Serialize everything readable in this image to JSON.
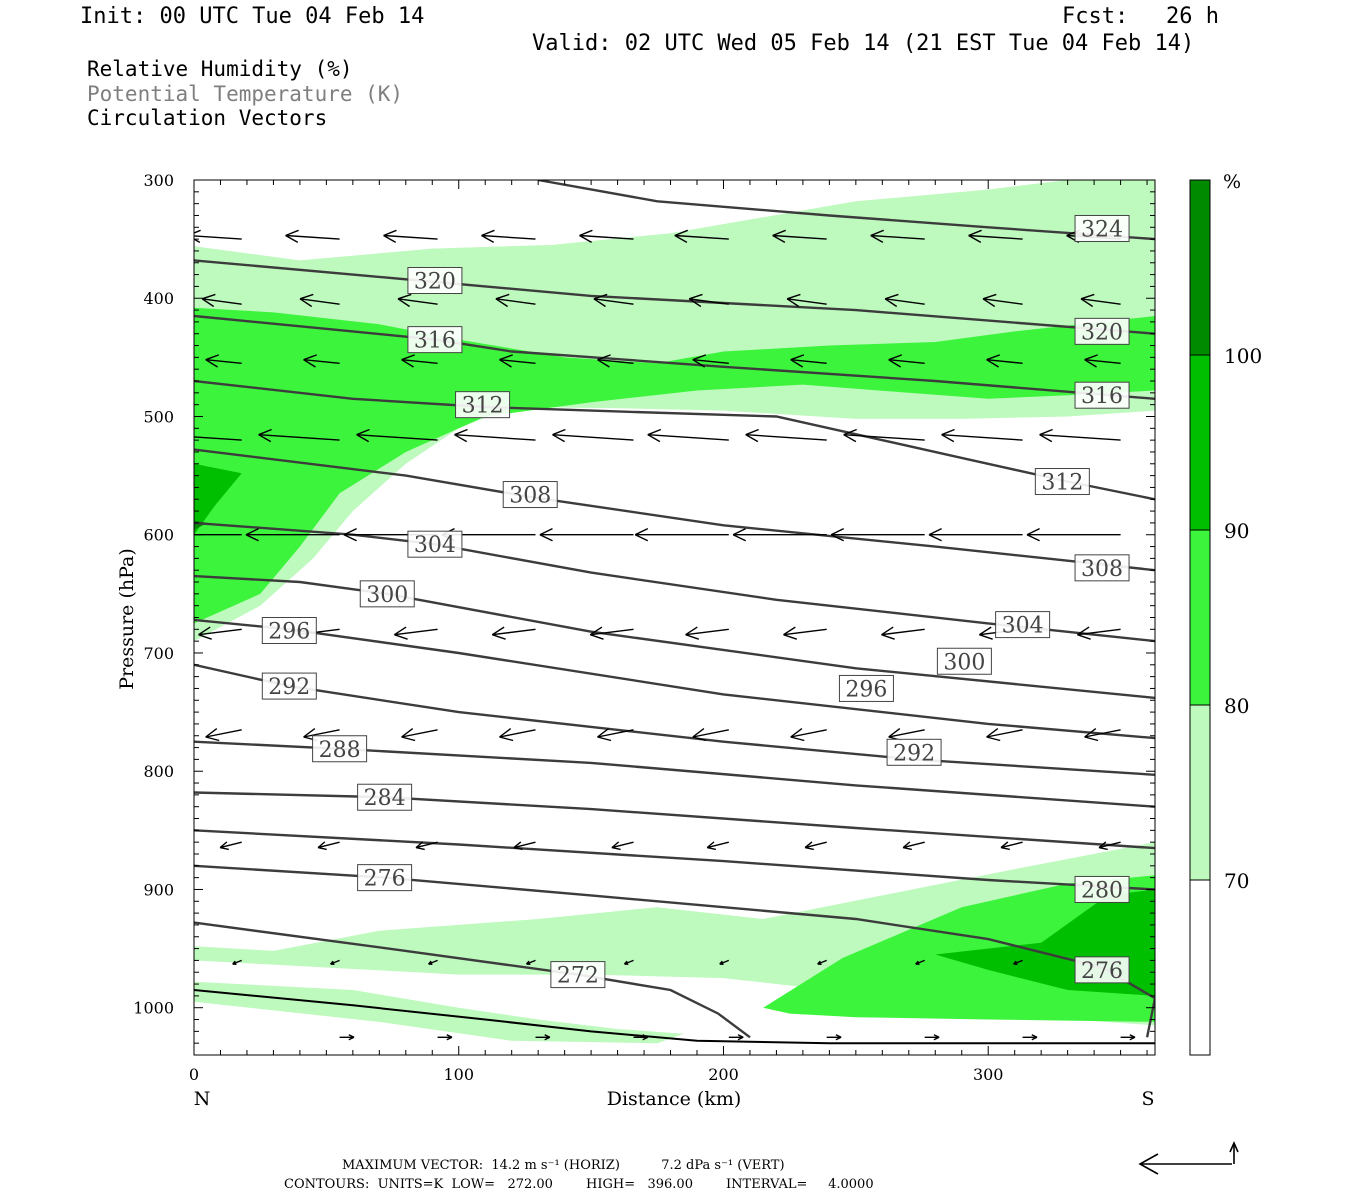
{
  "header": {
    "init": "Init: 00 UTC Tue 04 Feb 14",
    "fcst_label": "Fcst:",
    "fcst_value": "26 h",
    "valid": "Valid: 02 UTC Wed 05 Feb 14 (21 EST Tue 04 Feb 14)"
  },
  "legend": {
    "rh": "Relative Humidity (%)",
    "theta": "Potential Temperature (K)",
    "vectors": "Circulation Vectors"
  },
  "colors": {
    "rh70": "#bef9be",
    "rh80": "#3cf43c",
    "rh90": "#00bf00",
    "rh100": "#008a00",
    "contour": "#3c3c3c",
    "arrow": "#000000"
  },
  "chart_data": {
    "type": "cross-section",
    "xlabel": "Distance (km)",
    "ylabel": "Pressure (hPa)",
    "xlim": [
      0,
      363
    ],
    "ylim": [
      1040,
      300
    ],
    "x_ticks": [
      0,
      100,
      200,
      300
    ],
    "y_ticks": [
      300,
      400,
      500,
      600,
      700,
      800,
      900,
      1000
    ],
    "x_end_labels": {
      "left": "N",
      "right": "S"
    },
    "colorbar": {
      "unit": "%",
      "levels": [
        70,
        80,
        90,
        100
      ],
      "level_colors": [
        "#bef9be",
        "#3cf43c",
        "#00bf00",
        "#008a00"
      ]
    },
    "humidity_regions": [
      {
        "level": 70,
        "points": [
          [
            0,
            948
          ],
          [
            30,
            952
          ],
          [
            70,
            935
          ],
          [
            130,
            925
          ],
          [
            175,
            915
          ],
          [
            215,
            925
          ],
          [
            260,
            905
          ],
          [
            305,
            885
          ],
          [
            363,
            860
          ],
          [
            363,
            1015
          ],
          [
            300,
            1005
          ],
          [
            240,
            985
          ],
          [
            200,
            975
          ],
          [
            150,
            972
          ],
          [
            100,
            972
          ],
          [
            50,
            966
          ],
          [
            0,
            960
          ]
        ]
      },
      {
        "level": 70,
        "points": [
          [
            0,
            978
          ],
          [
            60,
            985
          ],
          [
            100,
            1000
          ],
          [
            130,
            1010
          ],
          [
            160,
            1018
          ],
          [
            185,
            1022
          ],
          [
            175,
            1030
          ],
          [
            120,
            1028
          ],
          [
            70,
            1012
          ],
          [
            0,
            995
          ]
        ]
      },
      {
        "level": 80,
        "points": [
          [
            215,
            1000
          ],
          [
            245,
            958
          ],
          [
            290,
            915
          ],
          [
            330,
            895
          ],
          [
            363,
            888
          ],
          [
            363,
            1012
          ],
          [
            300,
            1010
          ],
          [
            250,
            1008
          ],
          [
            225,
            1005
          ]
        ]
      },
      {
        "level": 90,
        "points": [
          [
            280,
            955
          ],
          [
            320,
            945
          ],
          [
            345,
            905
          ],
          [
            363,
            900
          ],
          [
            363,
            990
          ],
          [
            330,
            985
          ],
          [
            300,
            968
          ]
        ]
      },
      {
        "level": 70,
        "points": [
          [
            0,
            356
          ],
          [
            40,
            368
          ],
          [
            90,
            358
          ],
          [
            135,
            355
          ],
          [
            180,
            345
          ],
          [
            250,
            318
          ],
          [
            300,
            308
          ],
          [
            330,
            300
          ],
          [
            363,
            300
          ],
          [
            363,
            495
          ],
          [
            330,
            500
          ],
          [
            290,
            502
          ],
          [
            250,
            502
          ],
          [
            200,
            495
          ],
          [
            160,
            493
          ],
          [
            120,
            492
          ],
          [
            100,
            510
          ],
          [
            80,
            540
          ],
          [
            60,
            580
          ],
          [
            45,
            620
          ],
          [
            25,
            660
          ],
          [
            0,
            690
          ]
        ]
      },
      {
        "level": 80,
        "points": [
          [
            0,
            408
          ],
          [
            30,
            412
          ],
          [
            70,
            422
          ],
          [
            100,
            435
          ],
          [
            140,
            450
          ],
          [
            175,
            455
          ],
          [
            200,
            445
          ],
          [
            240,
            440
          ],
          [
            280,
            437
          ],
          [
            310,
            428
          ],
          [
            363,
            415
          ],
          [
            363,
            478
          ],
          [
            330,
            482
          ],
          [
            300,
            485
          ],
          [
            270,
            480
          ],
          [
            230,
            473
          ],
          [
            190,
            478
          ],
          [
            150,
            488
          ],
          [
            110,
            500
          ],
          [
            80,
            530
          ],
          [
            55,
            565
          ],
          [
            40,
            610
          ],
          [
            25,
            650
          ],
          [
            0,
            675
          ]
        ]
      },
      {
        "level": 90,
        "points": [
          [
            0,
            540
          ],
          [
            18,
            548
          ],
          [
            8,
            575
          ],
          [
            0,
            600
          ]
        ]
      },
      {
        "level": 100,
        "points": [
          [
            0,
            588
          ],
          [
            5,
            590
          ],
          [
            0,
            596
          ]
        ]
      }
    ],
    "theta_contours": [
      {
        "value": 324,
        "points": [
          [
            130,
            300
          ],
          [
            175,
            318
          ],
          [
            240,
            330
          ],
          [
            300,
            340
          ],
          [
            363,
            350
          ]
        ],
        "labels": [
          [
            343,
            341
          ]
        ]
      },
      {
        "value": 320,
        "points": [
          [
            0,
            368
          ],
          [
            85,
            385
          ],
          [
            150,
            398
          ],
          [
            250,
            410
          ],
          [
            363,
            430
          ]
        ],
        "labels": [
          [
            91,
            385
          ],
          [
            343,
            428
          ]
        ]
      },
      {
        "value": 316,
        "points": [
          [
            0,
            415
          ],
          [
            60,
            428
          ],
          [
            91,
            435
          ],
          [
            120,
            445
          ],
          [
            200,
            458
          ],
          [
            280,
            470
          ],
          [
            363,
            485
          ]
        ],
        "labels": [
          [
            91,
            435
          ],
          [
            343,
            482
          ]
        ]
      },
      {
        "value": 312,
        "points": [
          [
            0,
            470
          ],
          [
            60,
            485
          ],
          [
            110,
            492
          ],
          [
            150,
            495
          ],
          [
            220,
            500
          ],
          [
            290,
            535
          ],
          [
            330,
            555
          ],
          [
            363,
            570
          ]
        ],
        "labels": [
          [
            109,
            490
          ],
          [
            328,
            555
          ]
        ]
      },
      {
        "value": 308,
        "points": [
          [
            0,
            528
          ],
          [
            80,
            550
          ],
          [
            127,
            568
          ],
          [
            200,
            592
          ],
          [
            280,
            610
          ],
          [
            330,
            622
          ],
          [
            363,
            630
          ]
        ],
        "labels": [
          [
            127,
            566
          ],
          [
            343,
            628
          ]
        ]
      },
      {
        "value": 304,
        "points": [
          [
            0,
            590
          ],
          [
            60,
            600
          ],
          [
            91,
            608
          ],
          [
            150,
            632
          ],
          [
            220,
            655
          ],
          [
            300,
            675
          ],
          [
            363,
            690
          ]
        ],
        "labels": [
          [
            91,
            608
          ],
          [
            313,
            676
          ]
        ]
      },
      {
        "value": 300,
        "points": [
          [
            0,
            635
          ],
          [
            40,
            640
          ],
          [
            73,
            650
          ],
          [
            150,
            682
          ],
          [
            250,
            713
          ],
          [
            363,
            738
          ]
        ],
        "labels": [
          [
            73,
            650
          ],
          [
            291,
            707
          ]
        ]
      },
      {
        "value": 296,
        "points": [
          [
            0,
            672
          ],
          [
            36,
            680
          ],
          [
            100,
            700
          ],
          [
            200,
            735
          ],
          [
            300,
            760
          ],
          [
            363,
            772
          ]
        ],
        "labels": [
          [
            36,
            681
          ],
          [
            254,
            730
          ]
        ]
      },
      {
        "value": 292,
        "points": [
          [
            0,
            710
          ],
          [
            36,
            728
          ],
          [
            100,
            750
          ],
          [
            200,
            775
          ],
          [
            272,
            790
          ],
          [
            363,
            803
          ]
        ],
        "labels": [
          [
            36,
            728
          ],
          [
            272,
            784
          ]
        ]
      },
      {
        "value": 288,
        "points": [
          [
            0,
            775
          ],
          [
            55,
            781
          ],
          [
            150,
            793
          ],
          [
            250,
            812
          ],
          [
            363,
            830
          ]
        ],
        "labels": [
          [
            55,
            781
          ]
        ]
      },
      {
        "value": 284,
        "points": [
          [
            0,
            818
          ],
          [
            72,
            822
          ],
          [
            150,
            832
          ],
          [
            250,
            848
          ],
          [
            363,
            865
          ]
        ],
        "labels": [
          [
            72,
            822
          ]
        ]
      },
      {
        "value": 280,
        "points": [
          [
            0,
            850
          ],
          [
            100,
            862
          ],
          [
            200,
            876
          ],
          [
            300,
            892
          ],
          [
            363,
            900
          ]
        ],
        "labels": [
          [
            343,
            900
          ]
        ]
      },
      {
        "value": 276,
        "points": [
          [
            0,
            880
          ],
          [
            72,
            890
          ],
          [
            150,
            905
          ],
          [
            250,
            925
          ],
          [
            300,
            942
          ],
          [
            343,
            966
          ],
          [
            363,
            992
          ],
          [
            360,
            1025
          ]
        ],
        "labels": [
          [
            72,
            890
          ],
          [
            343,
            968
          ]
        ]
      },
      {
        "value": 272,
        "points": [
          [
            0,
            928
          ],
          [
            80,
            952
          ],
          [
            145,
            972
          ],
          [
            180,
            985
          ],
          [
            198,
            1005
          ],
          [
            210,
            1025
          ]
        ],
        "labels": [
          [
            145,
            972
          ]
        ]
      }
    ],
    "ground": [
      [
        0,
        985
      ],
      [
        60,
        998
      ],
      [
        110,
        1010
      ],
      [
        150,
        1020
      ],
      [
        190,
        1028
      ],
      [
        240,
        1030
      ],
      [
        363,
        1030
      ]
    ],
    "vectors": [
      {
        "p": 350,
        "x": [
          18,
          55,
          92,
          129,
          166,
          202,
          239,
          276,
          313,
          350
        ],
        "u": -0.3,
        "w": 0.02
      },
      {
        "p": 405,
        "x": [
          18,
          55,
          92,
          129,
          166,
          202,
          239,
          276,
          313,
          350
        ],
        "u": -0.22,
        "w": 0.03
      },
      {
        "p": 455,
        "x": [
          18,
          55,
          92,
          129,
          166,
          202,
          239,
          276,
          313,
          350
        ],
        "u": -0.2,
        "w": 0.02
      },
      {
        "p": 520,
        "x": [
          18,
          55,
          92,
          129,
          166,
          202,
          239,
          276,
          313,
          350
        ],
        "u": -0.45,
        "w": 0.03
      },
      {
        "p": 600,
        "x": [
          18,
          55,
          92,
          129,
          166,
          202,
          239,
          276,
          313,
          350
        ],
        "u": -0.52,
        "w": 0.0
      },
      {
        "p": 680,
        "x": [
          18,
          55,
          92,
          129,
          166,
          202,
          239,
          276,
          313,
          350
        ],
        "u": -0.24,
        "w": -0.03
      },
      {
        "p": 765,
        "x": [
          18,
          55,
          92,
          129,
          166,
          202,
          239,
          276,
          313,
          350
        ],
        "u": -0.2,
        "w": -0.04
      },
      {
        "p": 860,
        "x": [
          18,
          55,
          92,
          129,
          166,
          202,
          239,
          276,
          313,
          350
        ],
        "u": -0.12,
        "w": -0.03
      },
      {
        "p": 960,
        "x": [
          18,
          55,
          92,
          129,
          166,
          202,
          239,
          276,
          313,
          350
        ],
        "u": -0.05,
        "w": -0.02
      },
      {
        "p": 1025,
        "x": [
          55,
          92,
          129,
          166,
          202,
          239,
          276,
          313,
          350
        ],
        "u": 0.08,
        "w": 0.0
      }
    ]
  },
  "footer": {
    "max_vector": "MAXIMUM VECTOR:  14.2 m s⁻¹ (HORIZ)          7.2 dPa s⁻¹ (VERT)",
    "contours": "CONTOURS:  UNITS=K  LOW=   272.00        HIGH=   396.00        INTERVAL=     4.0000"
  }
}
